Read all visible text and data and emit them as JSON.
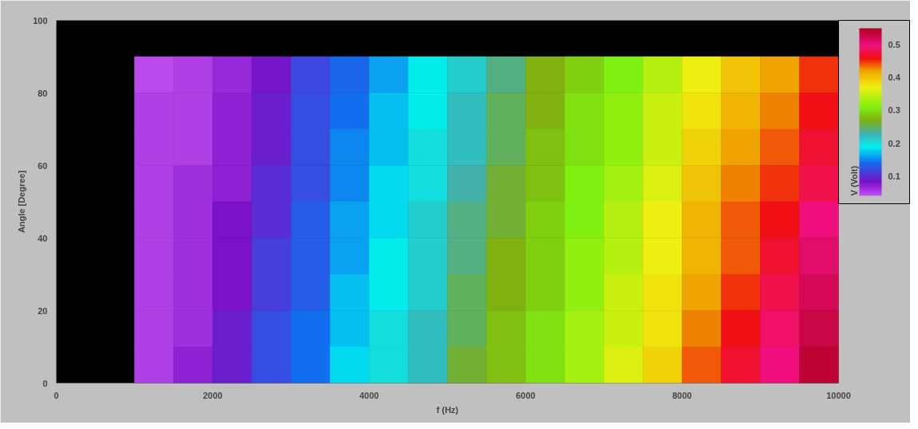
{
  "chart_data": {
    "type": "heatmap",
    "xlabel": "f (Hz)",
    "ylabel": "Angle [Degree]",
    "clabel": "V (Volt)",
    "x": [
      1250,
      1750,
      2250,
      2750,
      3250,
      3750,
      4250,
      4750,
      5250,
      5750,
      6250,
      6750,
      7250,
      7750,
      8250,
      8750,
      9250,
      9750
    ],
    "y": [
      85,
      75,
      65,
      55,
      45,
      35,
      25,
      15,
      5
    ],
    "cells": [
      [
        0.045,
        0.05,
        0.065,
        0.085,
        0.115,
        0.135,
        0.16,
        0.19,
        0.21,
        0.24,
        0.27,
        0.29,
        0.31,
        0.34,
        0.37,
        0.4,
        0.42,
        0.45
      ],
      [
        0.05,
        0.05,
        0.07,
        0.09,
        0.12,
        0.14,
        0.17,
        0.19,
        0.22,
        0.25,
        0.27,
        0.3,
        0.32,
        0.35,
        0.38,
        0.41,
        0.43,
        0.46
      ],
      [
        0.05,
        0.05,
        0.07,
        0.09,
        0.12,
        0.15,
        0.17,
        0.2,
        0.22,
        0.25,
        0.28,
        0.3,
        0.32,
        0.35,
        0.39,
        0.42,
        0.44,
        0.47
      ],
      [
        0.05,
        0.06,
        0.07,
        0.1,
        0.12,
        0.15,
        0.18,
        0.2,
        0.23,
        0.26,
        0.28,
        0.31,
        0.33,
        0.36,
        0.4,
        0.43,
        0.45,
        0.48
      ],
      [
        0.05,
        0.06,
        0.08,
        0.1,
        0.13,
        0.16,
        0.18,
        0.21,
        0.24,
        0.26,
        0.29,
        0.31,
        0.34,
        0.37,
        0.41,
        0.44,
        0.46,
        0.5
      ],
      [
        0.05,
        0.06,
        0.08,
        0.11,
        0.13,
        0.16,
        0.19,
        0.21,
        0.24,
        0.27,
        0.29,
        0.32,
        0.34,
        0.37,
        0.41,
        0.44,
        0.47,
        0.51
      ],
      [
        0.05,
        0.06,
        0.08,
        0.11,
        0.13,
        0.17,
        0.19,
        0.21,
        0.25,
        0.27,
        0.29,
        0.32,
        0.35,
        0.38,
        0.42,
        0.45,
        0.48,
        0.52
      ],
      [
        0.05,
        0.06,
        0.09,
        0.12,
        0.14,
        0.17,
        0.2,
        0.22,
        0.25,
        0.28,
        0.3,
        0.33,
        0.35,
        0.38,
        0.43,
        0.46,
        0.49,
        0.53
      ],
      [
        0.05,
        0.07,
        0.09,
        0.12,
        0.14,
        0.18,
        0.2,
        0.22,
        0.26,
        0.28,
        0.3,
        0.33,
        0.36,
        0.39,
        0.44,
        0.47,
        0.5,
        0.54
      ]
    ],
    "xlim": [
      0,
      10000
    ],
    "ylim": [
      0,
      100
    ],
    "xticks": [
      0,
      2000,
      4000,
      6000,
      8000,
      10000
    ],
    "yticks": [
      0,
      20,
      40,
      60,
      80,
      100
    ],
    "clim": [
      0.04,
      0.55
    ],
    "cticks": [
      0.1,
      0.2,
      0.3,
      0.4,
      0.5
    ],
    "grid": false
  }
}
